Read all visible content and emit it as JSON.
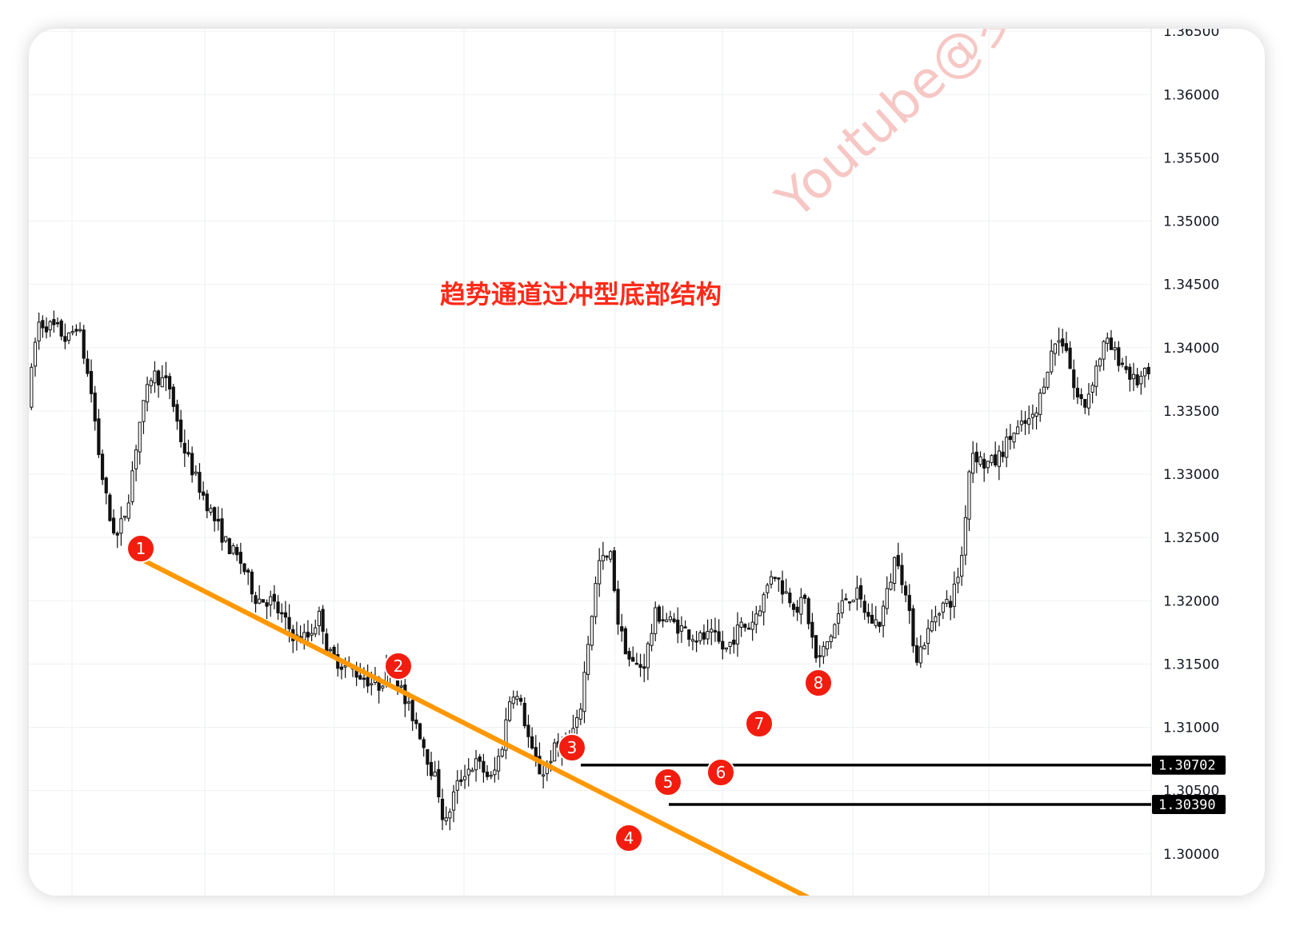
{
  "chart_data": {
    "type": "candlestick",
    "title": "趋势通道过冲型底部结构",
    "watermark": "Youtube@罗",
    "y_axis": {
      "position": "right",
      "range": [
        1.2967,
        1.3652
      ],
      "tick_values": [
        1.3,
        1.305,
        1.31,
        1.315,
        1.32,
        1.325,
        1.33,
        1.335,
        1.34,
        1.345,
        1.35,
        1.355,
        1.36,
        1.365
      ],
      "tick_labels": [
        "1.30000",
        "1.30500",
        "1.31000",
        "1.31500",
        "1.32000",
        "1.32500",
        "1.33000",
        "1.33500",
        "1.34000",
        "1.34500",
        "1.35000",
        "1.35500",
        "1.36000",
        "1.36500"
      ]
    },
    "grid": true,
    "price_path": {
      "candle_count": 300,
      "key_points": [
        [
          0,
          1.3355
        ],
        [
          4,
          1.342
        ],
        [
          12,
          1.3415
        ],
        [
          16,
          1.3405
        ],
        [
          20,
          1.342
        ],
        [
          26,
          1.336
        ],
        [
          29,
          1.331
        ],
        [
          33,
          1.3265
        ],
        [
          36,
          1.325
        ],
        [
          40,
          1.3275
        ],
        [
          45,
          1.334
        ],
        [
          50,
          1.338
        ],
        [
          57,
          1.337
        ],
        [
          62,
          1.3325
        ],
        [
          68,
          1.3295
        ],
        [
          75,
          1.3265
        ],
        [
          80,
          1.3245
        ],
        [
          86,
          1.323
        ],
        [
          92,
          1.3202
        ],
        [
          98,
          1.32
        ],
        [
          104,
          1.3182
        ],
        [
          108,
          1.317
        ],
        [
          113,
          1.3172
        ],
        [
          118,
          1.319
        ],
        [
          121,
          1.3158
        ],
        [
          128,
          1.3148
        ],
        [
          135,
          1.314
        ],
        [
          141,
          1.3132
        ],
        [
          147,
          1.315
        ],
        [
          152,
          1.312
        ],
        [
          157,
          1.3102
        ],
        [
          162,
          1.307
        ],
        [
          165,
          1.3055
        ],
        [
          168,
          1.302
        ],
        [
          172,
          1.305
        ],
        [
          176,
          1.3065
        ],
        [
          181,
          1.3072
        ],
        [
          187,
          1.3058
        ],
        [
          191,
          1.3085
        ],
        [
          195,
          1.3132
        ],
        [
          199,
          1.3115
        ],
        [
          203,
          1.308
        ],
        [
          207,
          1.3062
        ],
        [
          212,
          1.3082
        ],
        [
          217,
          1.3088
        ],
        [
          222,
          1.3105
        ],
        [
          226,
          1.3172
        ],
        [
          230,
          1.323
        ],
        [
          235,
          1.3235
        ],
        [
          238,
          1.318
        ],
        [
          243,
          1.315
        ],
        [
          248,
          1.3148
        ],
        [
          253,
          1.319
        ],
        [
          262,
          1.318
        ],
        [
          270,
          1.317
        ],
        [
          276,
          1.3172
        ],
        [
          281,
          1.316
        ],
        [
          287,
          1.318
        ],
        [
          291,
          1.318
        ],
        [
          297,
          1.3205
        ],
        [
          300,
          1.3225
        ],
        [
          304,
          1.321
        ],
        [
          310,
          1.3195
        ],
        [
          313,
          1.32
        ],
        [
          318,
          1.315
        ],
        [
          324,
          1.3175
        ],
        [
          329,
          1.3202
        ],
        [
          334,
          1.3205
        ],
        [
          339,
          1.3185
        ],
        [
          343,
          1.3182
        ],
        [
          347,
          1.3212
        ],
        [
          350,
          1.324
        ],
        [
          354,
          1.32
        ],
        [
          358,
          1.3155
        ],
        [
          362,
          1.3172
        ],
        [
          367,
          1.3195
        ],
        [
          372,
          1.32
        ],
        [
          376,
          1.323
        ],
        [
          380,
          1.332
        ],
        [
          385,
          1.3308
        ],
        [
          390,
          1.331
        ],
        [
          396,
          1.333
        ],
        [
          402,
          1.334
        ],
        [
          406,
          1.3345
        ],
        [
          410,
          1.338
        ],
        [
          414,
          1.3405
        ],
        [
          418,
          1.3405
        ],
        [
          422,
          1.3362
        ],
        [
          426,
          1.3355
        ],
        [
          430,
          1.3382
        ],
        [
          434,
          1.3405
        ],
        [
          438,
          1.3395
        ],
        [
          442,
          1.3385
        ],
        [
          446,
          1.3372
        ],
        [
          450,
          1.3378
        ]
      ]
    },
    "trendline": {
      "color": "#ff9800",
      "points": [
        [
          53,
          1.3233
        ],
        [
          214,
          1.3049
        ],
        [
          395,
          1.2946
        ]
      ]
    },
    "horizontal_levels": [
      {
        "price": 1.30702,
        "label": "1.30702",
        "from_index": 207
      },
      {
        "price": 1.3039,
        "label": "1.30390",
        "from_index": 239
      }
    ],
    "markers": [
      {
        "label": "1",
        "index": 53,
        "price": 1.3233
      },
      {
        "label": "2",
        "index": 138,
        "price": 1.3135
      },
      {
        "label": "3",
        "index": 204,
        "price": 1.3067
      },
      {
        "label": "4",
        "index": 223,
        "price": 1.2989
      },
      {
        "label": "5",
        "index": 240,
        "price": 1.3036
      },
      {
        "label": "6",
        "index": 258,
        "price": 1.304
      },
      {
        "label": "7",
        "index": 271,
        "price": 1.3081
      },
      {
        "label": "8",
        "index": 292,
        "price": 1.3114
      }
    ],
    "marker_color": "#f21d0f"
  }
}
